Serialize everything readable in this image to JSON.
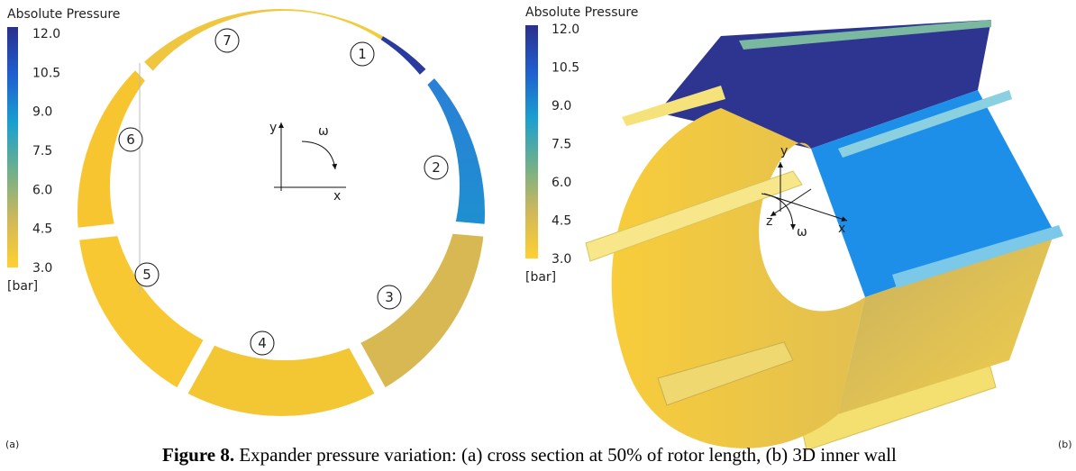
{
  "panel_a": {
    "label": "(a)",
    "colorbar": {
      "title": "Absolute Pressure",
      "ticks": [
        "12.0",
        "10.5",
        "9.0",
        "7.5",
        "6.0",
        "4.5",
        "3.0"
      ],
      "unit": "[bar]"
    },
    "chambers": [
      "1",
      "2",
      "3",
      "4",
      "5",
      "6",
      "7"
    ],
    "axes": {
      "y": "y",
      "x": "x",
      "omega": "ω"
    }
  },
  "panel_b": {
    "label": "(b)",
    "colorbar": {
      "title": "Absolute Pressure",
      "ticks": [
        "12.0",
        "10.5",
        "9.0",
        "7.5",
        "6.0",
        "4.5",
        "3.0"
      ],
      "unit": "[bar]"
    },
    "axes": {
      "y": "y",
      "x": "x",
      "z": "z",
      "omega": "ω"
    }
  },
  "caption": {
    "label": "Figure 8.",
    "text": " Expander pressure variation: (a) cross section at 50% of rotor length, (b) 3D inner wall"
  }
}
